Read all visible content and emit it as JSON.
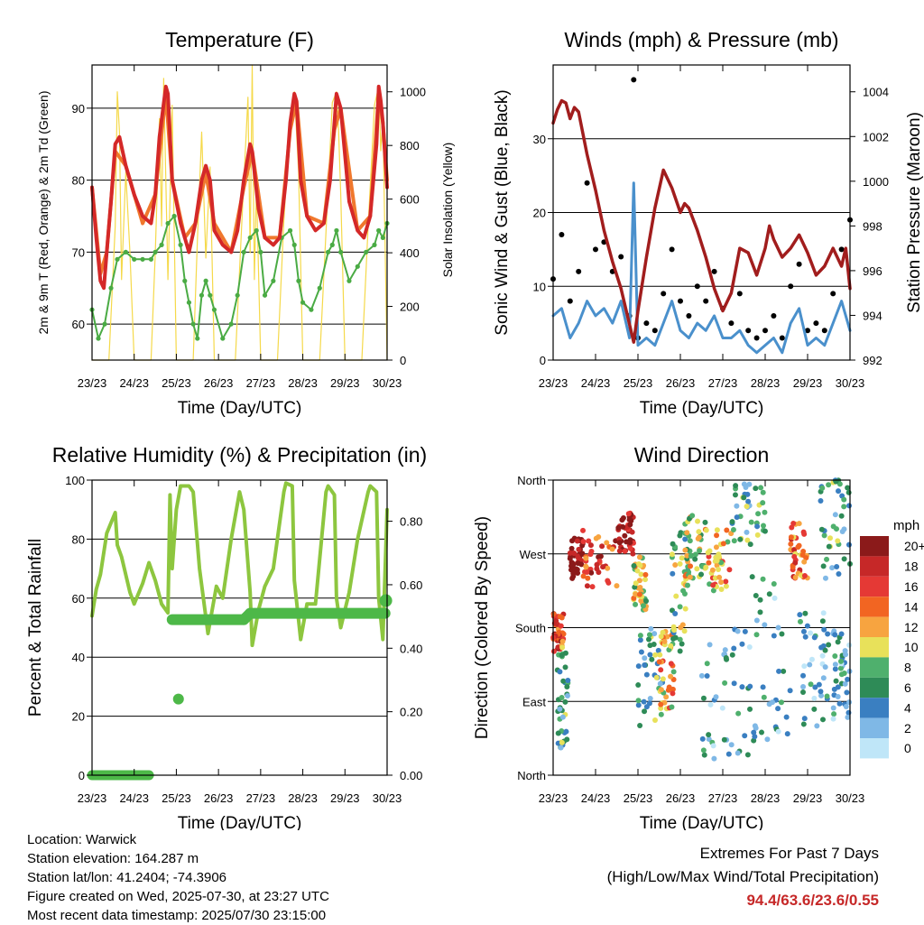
{
  "chart_data": [
    {
      "type": "line",
      "title": "Temperature (F)",
      "xlabel": "Time (Day/UTC)",
      "ylabel": "2m & 9m T (Red, Orange) & 2m Td (Green)",
      "ylabel_right": "Solar Insolation (Yellow)",
      "x_ticks": [
        "23/23",
        "24/23",
        "25/23",
        "26/23",
        "27/23",
        "28/23",
        "29/23",
        "30/23"
      ],
      "x_range": [
        0,
        7
      ],
      "ylim": [
        55,
        96
      ],
      "y_ticks": [
        60,
        70,
        80,
        90
      ],
      "ylim_right": [
        0,
        1100
      ],
      "y_ticks_right": [
        0,
        200,
        400,
        600,
        800,
        1000
      ],
      "grid": "horizontal",
      "colors": {
        "t2m": "#d42828",
        "t9m": "#f0782d",
        "td": "#4aab44",
        "solar": "#f5d94a"
      },
      "series": [
        {
          "key": "t2m",
          "x": [
            0,
            0.1,
            0.2,
            0.28,
            0.35,
            0.45,
            0.55,
            0.65,
            0.8,
            1.0,
            1.2,
            1.4,
            1.5,
            1.6,
            1.75,
            1.8,
            1.9,
            2.1,
            2.2,
            2.3,
            2.45,
            2.6,
            2.7,
            2.8,
            2.9,
            3.1,
            3.3,
            3.45,
            3.6,
            3.75,
            3.8,
            3.95,
            4.1,
            4.3,
            4.45,
            4.6,
            4.7,
            4.8,
            4.85,
            4.95,
            5.1,
            5.3,
            5.5,
            5.65,
            5.75,
            5.8,
            5.9,
            6.1,
            6.3,
            6.45,
            6.6,
            6.75,
            6.8,
            6.85,
            6.9,
            7.0
          ],
          "y": [
            79,
            72,
            66,
            65,
            70,
            77,
            85,
            86,
            82,
            78,
            75,
            74,
            78,
            86,
            93,
            92,
            80,
            74,
            72,
            70,
            74,
            80,
            82,
            80,
            73,
            71,
            70,
            73,
            80,
            85,
            84,
            76,
            72,
            71,
            72,
            80,
            88,
            92,
            91,
            80,
            75,
            73,
            74,
            80,
            88,
            92,
            90,
            77,
            73,
            72,
            75,
            85,
            93,
            91,
            88,
            79
          ]
        },
        {
          "key": "t9m",
          "x": [
            0,
            0.2,
            0.35,
            0.55,
            0.8,
            1.2,
            1.5,
            1.75,
            1.9,
            2.2,
            2.45,
            2.7,
            2.9,
            3.3,
            3.6,
            3.8,
            4.1,
            4.45,
            4.7,
            4.85,
            5.1,
            5.5,
            5.75,
            5.9,
            6.3,
            6.6,
            6.8,
            6.9,
            7.0
          ],
          "y": [
            79,
            67,
            70,
            84,
            82,
            74,
            78,
            92,
            80,
            72,
            74,
            81,
            74,
            70,
            79,
            84,
            72,
            72,
            87,
            91,
            75,
            74,
            87,
            90,
            73,
            75,
            92,
            88,
            80
          ]
        },
        {
          "key": "td",
          "x": [
            0,
            0.15,
            0.3,
            0.45,
            0.6,
            0.8,
            1.0,
            1.2,
            1.4,
            1.5,
            1.65,
            1.8,
            1.95,
            2.1,
            2.2,
            2.3,
            2.4,
            2.5,
            2.6,
            2.7,
            2.8,
            2.9,
            3.1,
            3.3,
            3.45,
            3.6,
            3.75,
            3.9,
            4.0,
            4.1,
            4.3,
            4.5,
            4.7,
            4.8,
            4.9,
            5.0,
            5.2,
            5.4,
            5.6,
            5.7,
            5.8,
            5.9,
            6.1,
            6.3,
            6.5,
            6.7,
            6.8,
            6.9,
            7.0
          ],
          "y": [
            62,
            58,
            60,
            65,
            69,
            70,
            69,
            69,
            69,
            70,
            71,
            74,
            75,
            71,
            66,
            63,
            60,
            58,
            64,
            66,
            64,
            62,
            58,
            60,
            64,
            70,
            72,
            73,
            70,
            64,
            66,
            72,
            73,
            71,
            66,
            63,
            62,
            65,
            70,
            71,
            73,
            70,
            66,
            68,
            70,
            71,
            73,
            72,
            74
          ]
        },
        {
          "key": "solar",
          "x": [
            0,
            0.4,
            0.55,
            0.6,
            0.65,
            0.7,
            0.8,
            0.9,
            1.0,
            1.4,
            1.5,
            1.6,
            1.65,
            1.7,
            1.8,
            1.85,
            1.9,
            2.0,
            2.4,
            2.5,
            2.6,
            2.7,
            2.8,
            2.9,
            3.4,
            3.55,
            3.7,
            3.75,
            3.8,
            3.85,
            3.9,
            4.0,
            4.4,
            4.55,
            4.7,
            4.8,
            4.85,
            4.9,
            5.0,
            5.4,
            5.55,
            5.7,
            5.8,
            5.85,
            5.9,
            6.0,
            6.4,
            6.55,
            6.7,
            6.8,
            6.85,
            6.9,
            7.0
          ],
          "y": [
            0,
            0,
            500,
            1000,
            850,
            300,
            700,
            400,
            0,
            0,
            400,
            900,
            500,
            1050,
            300,
            600,
            950,
            0,
            0,
            450,
            850,
            380,
            720,
            0,
            0,
            500,
            980,
            400,
            1100,
            300,
            650,
            0,
            0,
            520,
            900,
            1000,
            850,
            700,
            0,
            0,
            480,
            960,
            1000,
            850,
            620,
            0,
            0,
            500,
            950,
            1020,
            780,
            900,
            0
          ]
        }
      ]
    },
    {
      "type": "line",
      "title": "Winds (mph) & Pressure (mb)",
      "xlabel": "Time (Day/UTC)",
      "ylabel": "Sonic Wind & Gust (Blue, Black)",
      "ylabel_right": "Station Pressure (Maroon)",
      "x_ticks": [
        "23/23",
        "24/23",
        "25/23",
        "26/23",
        "27/23",
        "28/23",
        "29/23",
        "30/23"
      ],
      "x_range": [
        0,
        7
      ],
      "ylim": [
        0,
        40
      ],
      "y_ticks": [
        0,
        10,
        20,
        30
      ],
      "ylim_right": [
        992,
        1005.2
      ],
      "y_ticks_right": [
        992,
        994,
        996,
        998,
        1000,
        1002,
        1004
      ],
      "grid": "horizontal",
      "colors": {
        "wind": "#4a90cc",
        "gust": "#000000",
        "pressure": "#a11d1d"
      },
      "series": [
        {
          "key": "wind",
          "x": [
            0,
            0.2,
            0.4,
            0.6,
            0.8,
            1.0,
            1.2,
            1.4,
            1.6,
            1.8,
            1.9,
            2.0,
            2.2,
            2.4,
            2.6,
            2.8,
            3.0,
            3.2,
            3.4,
            3.6,
            3.8,
            4.0,
            4.2,
            4.4,
            4.6,
            4.8,
            5.0,
            5.2,
            5.4,
            5.6,
            5.8,
            6.0,
            6.2,
            6.4,
            6.6,
            6.8,
            7.0
          ],
          "y": [
            6,
            7,
            3,
            5,
            8,
            6,
            7,
            5,
            8,
            3,
            24,
            2,
            3,
            2,
            5,
            8,
            4,
            3,
            5,
            4,
            6,
            3,
            3,
            4,
            2,
            1,
            2,
            3,
            1,
            5,
            7,
            2,
            3,
            2,
            5,
            8,
            4
          ]
        },
        {
          "key": "gust",
          "x": [
            0,
            0.2,
            0.4,
            0.6,
            0.8,
            1.0,
            1.2,
            1.4,
            1.6,
            1.8,
            1.9,
            2.0,
            2.2,
            2.4,
            2.6,
            2.8,
            3.0,
            3.2,
            3.4,
            3.6,
            3.8,
            4.0,
            4.2,
            4.4,
            4.6,
            4.8,
            5.0,
            5.2,
            5.4,
            5.6,
            5.8,
            6.0,
            6.2,
            6.4,
            6.6,
            6.8,
            7.0
          ],
          "y": [
            11,
            17,
            8,
            12,
            24,
            15,
            16,
            12,
            14,
            6,
            38,
            3,
            5,
            4,
            9,
            15,
            8,
            6,
            10,
            8,
            12,
            7,
            5,
            9,
            4,
            3,
            4,
            6,
            3,
            10,
            13,
            4,
            5,
            4,
            9,
            15,
            19
          ]
        },
        {
          "key": "pressure",
          "x": [
            0,
            0.1,
            0.2,
            0.3,
            0.4,
            0.5,
            0.6,
            0.8,
            1.0,
            1.2,
            1.4,
            1.6,
            1.8,
            1.9,
            2.0,
            2.2,
            2.4,
            2.6,
            2.8,
            3.0,
            3.1,
            3.2,
            3.4,
            3.6,
            3.8,
            4.0,
            4.2,
            4.4,
            4.6,
            4.8,
            5.0,
            5.1,
            5.2,
            5.4,
            5.6,
            5.8,
            6.0,
            6.2,
            6.4,
            6.6,
            6.8,
            6.9,
            7.0
          ],
          "y": [
            1002.6,
            1003.2,
            1003.6,
            1003.5,
            1002.8,
            1003.3,
            1003.1,
            1001.2,
            999.6,
            997.8,
            996.4,
            995.2,
            993.6,
            992.8,
            994.2,
            996.6,
            998.8,
            1000.5,
            999.7,
            998.6,
            999.0,
            998.8,
            997.8,
            996.6,
            995.2,
            994.2,
            995.0,
            997.0,
            996.8,
            995.8,
            997.0,
            998.0,
            997.4,
            996.6,
            997.0,
            997.6,
            996.8,
            995.8,
            996.2,
            997.0,
            996.2,
            997.0,
            995.2
          ]
        }
      ]
    },
    {
      "type": "line",
      "title": "Relative Humidity (%) & Precipitation (in)",
      "xlabel": "Time (Day/UTC)",
      "ylabel": "Percent & Total Rainfall",
      "x_ticks": [
        "23/23",
        "24/23",
        "25/23",
        "26/23",
        "27/23",
        "28/23",
        "29/23",
        "30/23"
      ],
      "x_range": [
        0,
        7
      ],
      "ylim": [
        0,
        100
      ],
      "y_ticks": [
        0,
        20,
        40,
        60,
        80,
        100
      ],
      "ylim_right": [
        0,
        0.9296
      ],
      "y_ticks_right": [
        "0.00",
        "0.20",
        "0.40",
        "0.60",
        "0.80"
      ],
      "grid": "horizontal",
      "colors": {
        "rh": "#8dc63f",
        "rain": "#4db848"
      },
      "series": [
        {
          "key": "rh",
          "x": [
            0,
            0.1,
            0.2,
            0.35,
            0.55,
            0.6,
            0.7,
            0.9,
            1.0,
            1.2,
            1.35,
            1.5,
            1.65,
            1.8,
            1.85,
            1.9,
            2.0,
            2.1,
            2.3,
            2.4,
            2.55,
            2.75,
            2.8,
            2.95,
            3.1,
            3.3,
            3.5,
            3.6,
            3.75,
            3.8,
            3.95,
            4.1,
            4.3,
            4.55,
            4.6,
            4.75,
            4.8,
            4.95,
            5.1,
            5.3,
            5.55,
            5.6,
            5.75,
            5.8,
            5.9,
            6.1,
            6.3,
            6.55,
            6.6,
            6.75,
            6.8,
            6.9,
            7.0
          ],
          "y": [
            54,
            63,
            68,
            82,
            89,
            78,
            74,
            62,
            58,
            65,
            72,
            66,
            58,
            55,
            95,
            70,
            90,
            98,
            98,
            96,
            70,
            48,
            52,
            64,
            60,
            80,
            96,
            90,
            62,
            44,
            56,
            64,
            70,
            96,
            99,
            98,
            66,
            46,
            58,
            58,
            96,
            98,
            95,
            60,
            50,
            62,
            80,
            96,
            98,
            96,
            60,
            46,
            90
          ]
        },
        {
          "key": "rain",
          "x": [
            0,
            1.0,
            2.0,
            2.05,
            2.06,
            4.0,
            4.01,
            5.0,
            6.0,
            7.0
          ],
          "y": [
            0,
            0,
            0,
            0.24,
            0.49,
            0.49,
            0.51,
            0.51,
            0.51,
            0.55
          ]
        }
      ]
    },
    {
      "type": "scatter",
      "title": "Wind Direction",
      "xlabel": "Time (Day/UTC)",
      "ylabel": "Direction (Colored By Speed)",
      "x_ticks": [
        "23/23",
        "24/23",
        "25/23",
        "26/23",
        "27/23",
        "28/23",
        "29/23",
        "30/23"
      ],
      "x_range": [
        0,
        7
      ],
      "ylim": [
        0,
        360
      ],
      "y_ticks": [
        "North",
        "East",
        "South",
        "West",
        "North"
      ],
      "grid": "horizontal",
      "colorbar": {
        "title": "mph",
        "labels": [
          "20+",
          "18",
          "16",
          "14",
          "12",
          "10",
          "8",
          "6",
          "4",
          "2",
          "0"
        ],
        "colors": [
          "#8b1a1a",
          "#c62828",
          "#e53935",
          "#f26522",
          "#f7a440",
          "#e8e15a",
          "#4fb06d",
          "#2e8b57",
          "#3a7fc1",
          "#7fb8e6",
          "#bfe6f8"
        ]
      }
    }
  ],
  "footer": {
    "location": "Location: Warwick",
    "elevation": "Station elevation: 164.287 m",
    "latlon": "Station lat/lon: 41.2404; -74.3906",
    "created": "Figure created on Wed, 2025-07-30, at 23:27 UTC",
    "recent": "Most recent data timestamp: 2025/07/30 23:15:00",
    "extremes_title": "Extremes For Past 7 Days",
    "extremes_sub": "(High/Low/Max Wind/Total Precipitation)",
    "extremes_value": "94.4/63.6/23.6/0.55"
  }
}
